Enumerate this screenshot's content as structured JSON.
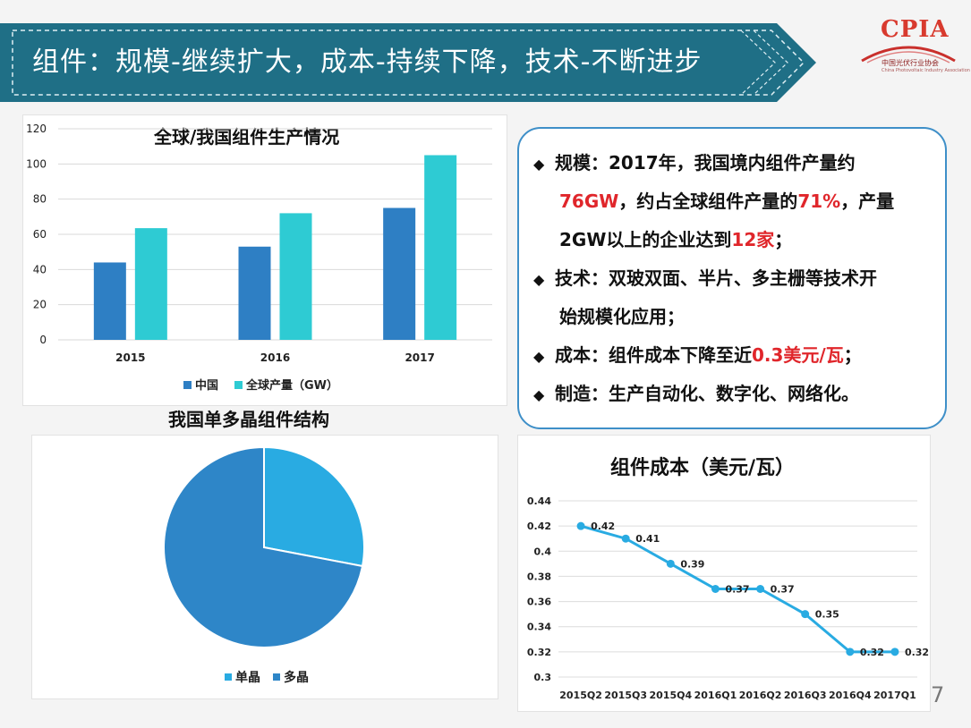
{
  "header": {
    "title": "组件：规模-继续扩大，成本-持续下降，技术-不断进步",
    "logo_text": "CPIA",
    "logo_subtitle": "中国光伏行业协会",
    "logo_subtitle_en": "China Photovoltaic Industry Association"
  },
  "bullets": {
    "b1_label": "规模：",
    "b1_l1": "2017年，我国境内组件产量约",
    "b1_red1": "76GW",
    "b1_l2": "，约占全球组件产量的",
    "b1_red2": "71%",
    "b1_l2b": "，产量",
    "b1_l3": "2GW以上的企业达到",
    "b1_red3": "12家",
    "b1_l3b": "；",
    "b2_l1": "技术：双玻双面、半片、多主栅等技术开",
    "b2_l2": "始规模化应用；",
    "b3_l1a": "成本：组件成本下降至近",
    "b3_red": "0.3美元/瓦",
    "b3_l1b": "；",
    "b4_l1": "制造：生产自动化、数字化、网络化。"
  },
  "page_number": "7",
  "colors": {
    "banner": "#1f6f86",
    "china": "#2e7fc4",
    "global": "#2ecbd3",
    "pie_mono": "#29abe2",
    "pie_multi": "#2e86c8",
    "line": "#29abe2",
    "red": "#e0262b"
  },
  "chart_data": [
    {
      "type": "bar",
      "title": "全球/我国组件生产情况",
      "categories": [
        "2015",
        "2016",
        "2017"
      ],
      "series": [
        {
          "name": "中国",
          "values": [
            44,
            53,
            75
          ]
        },
        {
          "name": "全球产量（GW）",
          "values": [
            63.5,
            72,
            105
          ]
        }
      ],
      "ylim": [
        0,
        120
      ],
      "yticks": [
        "0",
        "20",
        "40",
        "60",
        "80",
        "100",
        "120"
      ],
      "legend": "bottom",
      "grid": true
    },
    {
      "type": "pie",
      "title": "我国单多晶组件结构",
      "labels": [
        "单晶",
        "多晶"
      ],
      "values": [
        28,
        72
      ],
      "legend": "bottom"
    },
    {
      "type": "line",
      "title": "组件成本（美元/瓦）",
      "x": [
        "2015Q2",
        "2015Q3",
        "2015Q4",
        "2016Q1",
        "2016Q2",
        "2016Q3",
        "2016Q4",
        "2017Q1"
      ],
      "values": [
        0.42,
        0.41,
        0.39,
        0.37,
        0.37,
        0.35,
        0.32,
        0.32
      ],
      "labels": [
        "0.42",
        "0.41",
        "0.39",
        "0.37",
        "0.37",
        "0.35",
        "0.32",
        "0.32"
      ],
      "ylim": [
        0.3,
        0.44
      ],
      "yticks": [
        "0.3",
        "0.32",
        "0.34",
        "0.36",
        "0.38",
        "0.4",
        "0.42",
        "0.44"
      ],
      "grid": true
    }
  ]
}
